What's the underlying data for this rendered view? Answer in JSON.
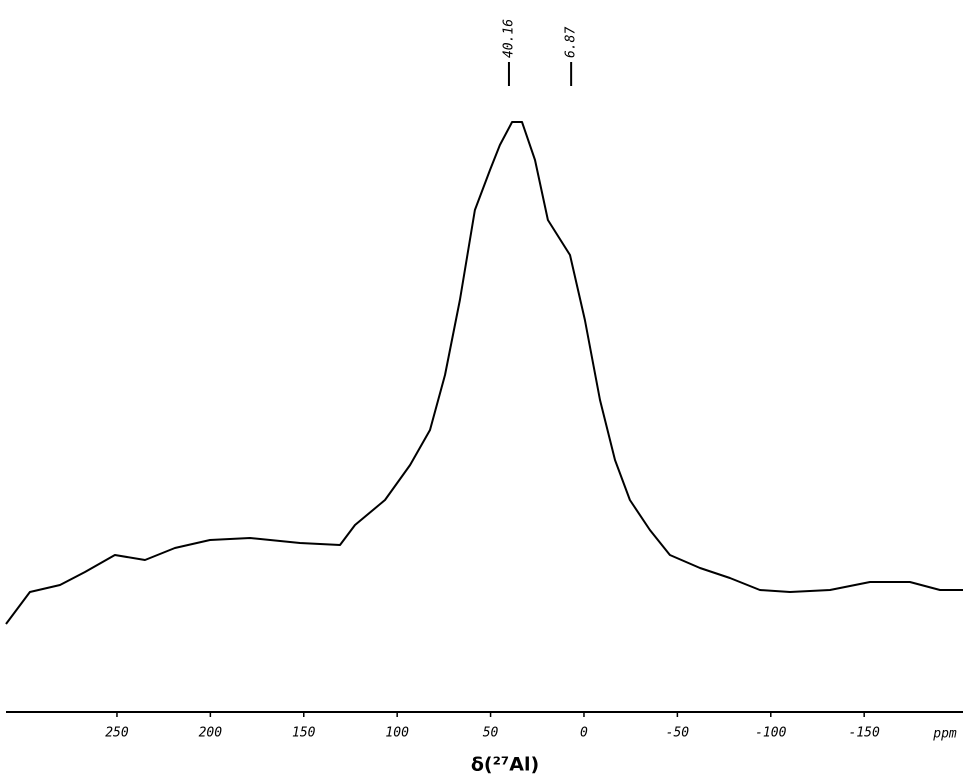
{
  "chart_data": {
    "type": "line",
    "x_label": "δ(²⁷Al)",
    "x_unit": "ppm",
    "peak_labels": [
      40.16,
      6.87
    ],
    "x": [
      309.4,
      296.6,
      280.5,
      267.1,
      251.1,
      235.0,
      219.0,
      200.2,
      178.8,
      152.0,
      130.6,
      122.6,
      106.5,
      93.1,
      82.4,
      74.4,
      66.4,
      58.4,
      50.3,
      45.0,
      38.5,
      33.2,
      26.2,
      19.3,
      7.5,
      -0.5,
      -8.6,
      -16.6,
      -24.6,
      -35.3,
      -46.0,
      -62.1,
      -78.1,
      -94.2,
      -110.3,
      -131.7,
      -153.1,
      -174.5,
      -190.6,
      -202.9
    ],
    "values": [
      88,
      120,
      127,
      140,
      157,
      152,
      164,
      172,
      174,
      169,
      167,
      187,
      212,
      247,
      282,
      337,
      412,
      502,
      542,
      567,
      590,
      590,
      552,
      492,
      457,
      392,
      312,
      252,
      212,
      182,
      157,
      144,
      134,
      122,
      120,
      122,
      130,
      130,
      122,
      122
    ],
    "color": "#000000",
    "xlim": [
      309.4,
      -202.9
    ],
    "ylim": [
      0,
      630
    ],
    "xticks": [
      250,
      200,
      150,
      100,
      50,
      0,
      -50,
      -100,
      -150
    ]
  }
}
